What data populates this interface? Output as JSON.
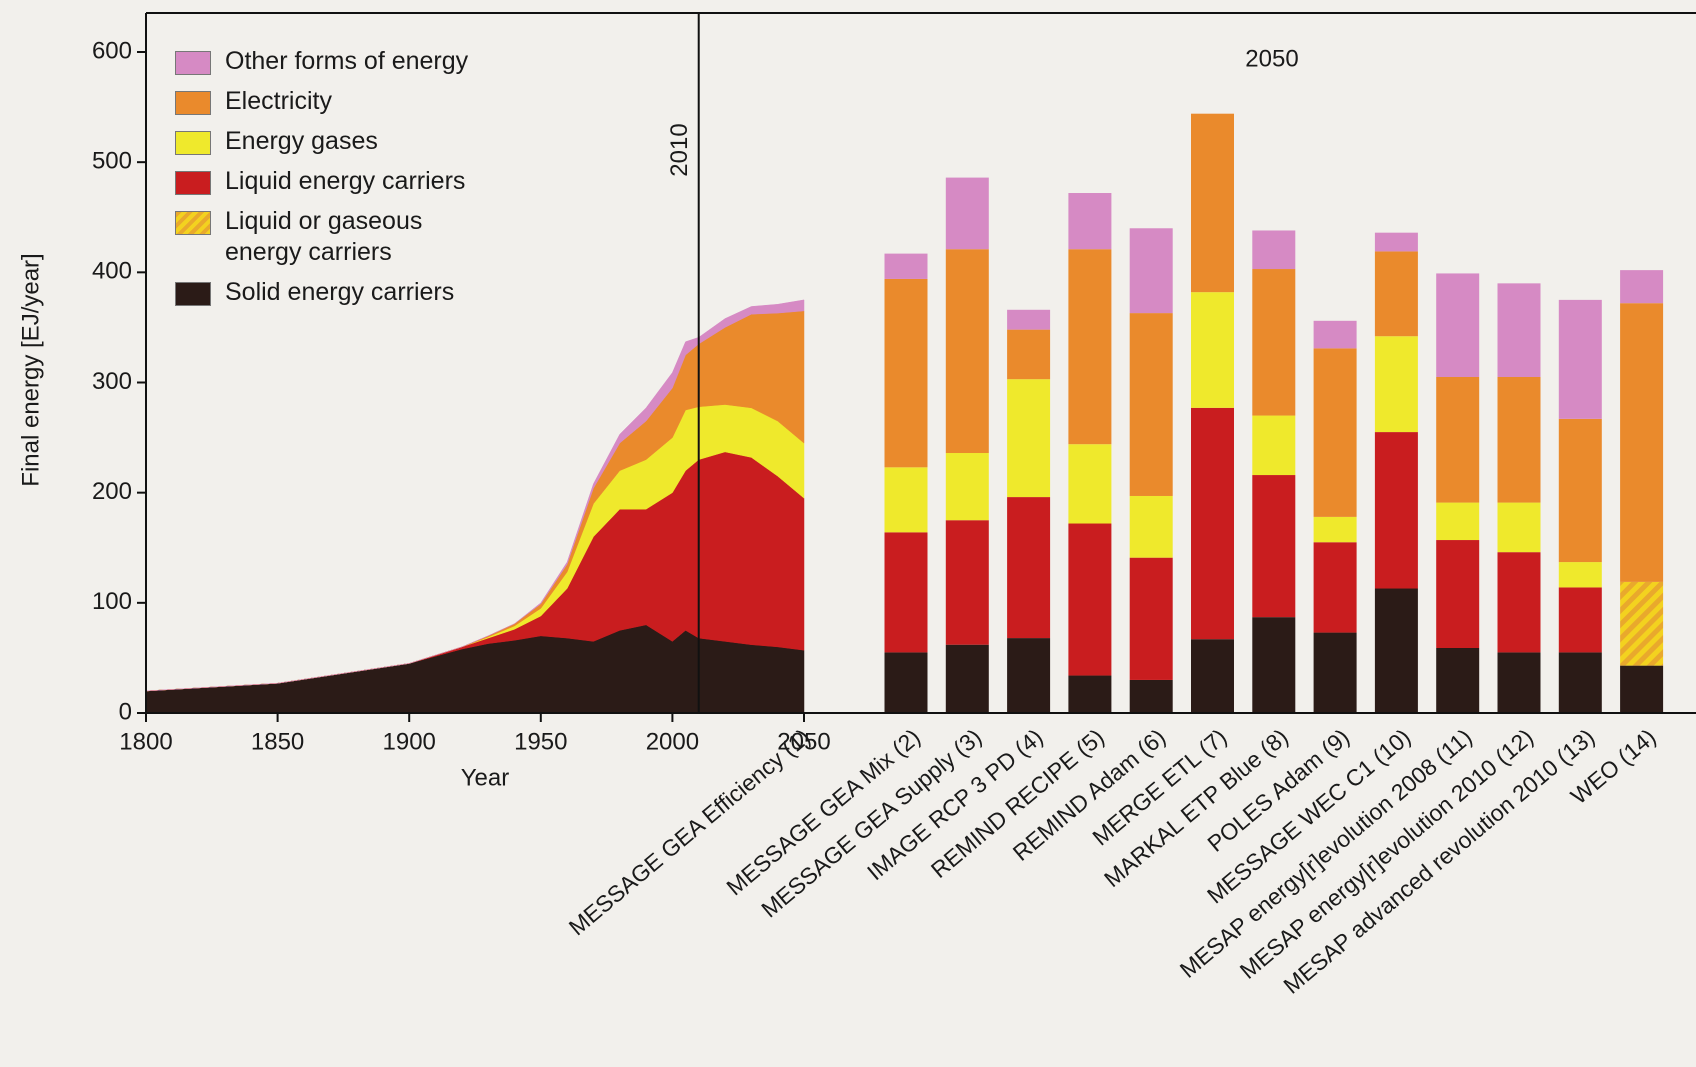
{
  "chart_data": [
    {
      "type": "area",
      "x_label": "Year",
      "y_label": "Final energy [EJ/year]",
      "xlim": [
        1800,
        2050
      ],
      "xticks": [
        1800,
        1850,
        1900,
        1950,
        2000,
        2050
      ],
      "ylim": [
        0,
        600
      ],
      "yticks": [
        0,
        100,
        200,
        300,
        400,
        500,
        600
      ],
      "scenario": "MESSAGE GEA Efficiency (1)",
      "annotation": "2010",
      "annotation_x": 2010,
      "x": [
        1800,
        1850,
        1900,
        1920,
        1930,
        1940,
        1950,
        1960,
        1970,
        1980,
        1990,
        2000,
        2005,
        2010,
        2020,
        2030,
        2040,
        2050
      ],
      "series": [
        {
          "name": "Solid energy carriers",
          "color": "#2b1b17",
          "values": [
            20,
            27,
            45,
            58,
            63,
            66,
            70,
            68,
            65,
            75,
            80,
            65,
            75,
            68,
            65,
            62,
            60,
            57
          ]
        },
        {
          "name": "Liquid energy carriers",
          "color": "#c91d1f",
          "values": [
            0,
            0,
            0,
            2,
            5,
            10,
            18,
            45,
            95,
            110,
            105,
            135,
            145,
            162,
            172,
            170,
            155,
            138
          ]
        },
        {
          "name": "Energy gases",
          "color": "#efe92c",
          "values": [
            0,
            0,
            0,
            0,
            1,
            3,
            7,
            15,
            30,
            35,
            45,
            50,
            55,
            48,
            43,
            45,
            50,
            50
          ]
        },
        {
          "name": "Electricity",
          "color": "#ea8a2c",
          "values": [
            0,
            0,
            0,
            0,
            1,
            2,
            4,
            7,
            14,
            25,
            35,
            45,
            50,
            57,
            70,
            85,
            98,
            120
          ]
        },
        {
          "name": "Other forms of energy",
          "color": "#d68ac4",
          "values": [
            0,
            0,
            0,
            0,
            0,
            0,
            1,
            2,
            4,
            8,
            12,
            14,
            12,
            6,
            8,
            7,
            8,
            10
          ]
        }
      ]
    },
    {
      "type": "bar",
      "stacked": true,
      "annotation": "2050",
      "categories": [
        "MESSAGE GEA Mix (2)",
        "MESSAGE GEA Supply (3)",
        "IMAGE RCP 3 PD (4)",
        "REMIND RECIPE (5)",
        "REMIND Adam (6)",
        "MERGE ETL (7)",
        "MARKAL ETP Blue (8)",
        "POLES Adam (9)",
        "MESSAGE WEC C1 (10)",
        "MESAP energy[r]evolution 2008 (11)",
        "MESAP energy[r]evolution 2010 (12)",
        "MESAP advanced revolution 2010 (13)",
        "WEO (14)"
      ],
      "series": [
        {
          "name": "Solid energy carriers",
          "color": "#2b1b17",
          "values": [
            55,
            62,
            68,
            34,
            30,
            67,
            87,
            73,
            113,
            59,
            55,
            55,
            43
          ]
        },
        {
          "name": "Liquid or gaseous energy carriers",
          "color": "#e9a92c",
          "hatch_color": "#f3d21f",
          "pattern": "hatch",
          "values": [
            0,
            0,
            0,
            0,
            0,
            0,
            0,
            0,
            0,
            0,
            0,
            0,
            76
          ]
        },
        {
          "name": "Liquid energy carriers",
          "color": "#c91d1f",
          "values": [
            109,
            113,
            128,
            138,
            111,
            210,
            129,
            82,
            142,
            98,
            91,
            59,
            0
          ]
        },
        {
          "name": "Energy gases",
          "color": "#efe92c",
          "values": [
            59,
            61,
            107,
            72,
            56,
            105,
            54,
            23,
            87,
            34,
            45,
            23,
            0
          ]
        },
        {
          "name": "Electricity",
          "color": "#ea8a2c",
          "values": [
            171,
            185,
            45,
            177,
            166,
            162,
            133,
            153,
            77,
            114,
            114,
            130,
            253
          ]
        },
        {
          "name": "Other forms of energy",
          "color": "#d68ac4",
          "values": [
            23,
            65,
            18,
            51,
            77,
            0,
            35,
            25,
            17,
            94,
            85,
            108,
            30
          ]
        }
      ]
    }
  ]
}
